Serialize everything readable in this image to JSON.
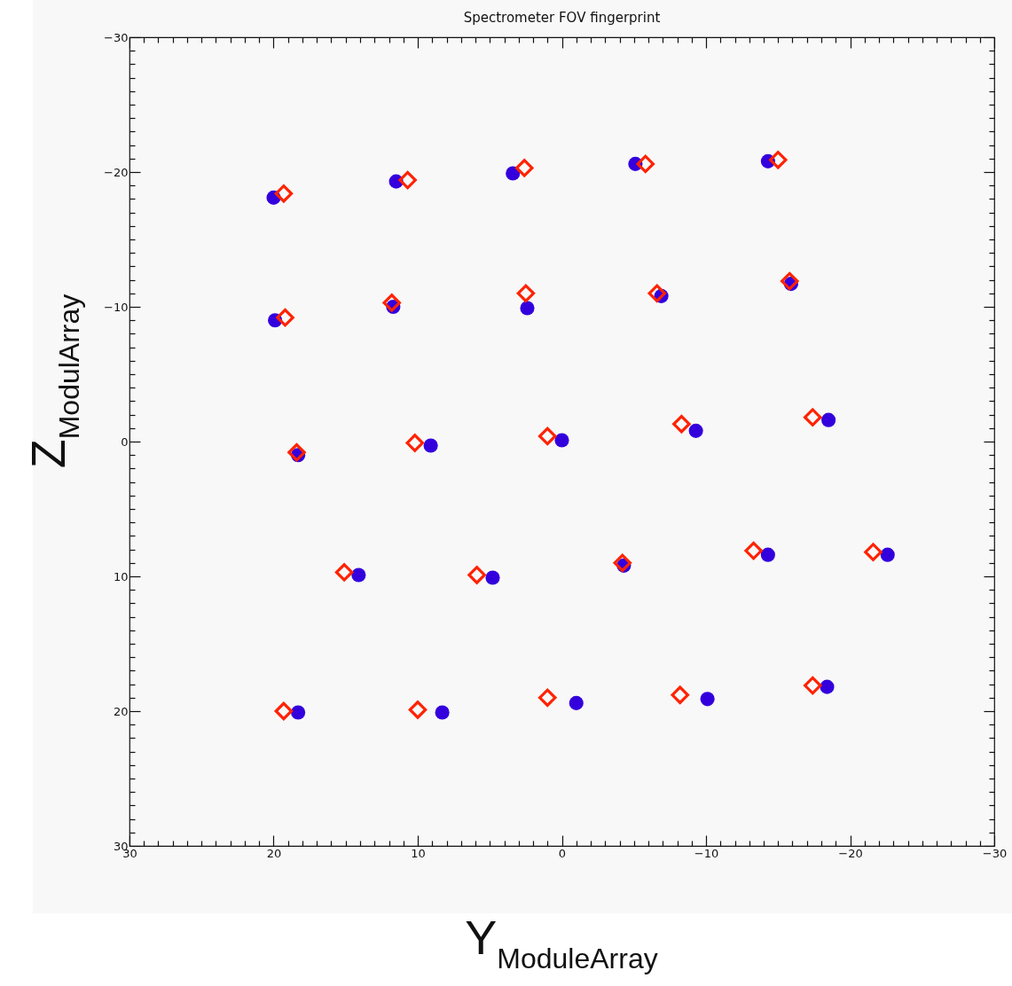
{
  "chart_data": {
    "type": "scatter",
    "title": "Spectrometer FOV fingerprint",
    "xlabel": "Y$_{ModuleArray}$",
    "ylabel": "Z$_{ModulArray}$",
    "xlim": [
      30,
      -30
    ],
    "ylim": [
      30,
      -30
    ],
    "xticks": [
      30,
      {
        "value": 29,
        "label": null
      },
      {
        "value": 28,
        "label": null
      },
      {
        "value": 27,
        "label": null
      },
      {
        "value": 26,
        "label": null
      },
      {
        "value": 25,
        "label": null
      },
      {
        "value": 24,
        "label": null
      },
      {
        "value": 23,
        "label": null
      },
      {
        "value": 22,
        "label": null
      },
      {
        "value": 21,
        "label": null
      },
      20,
      {
        "value": 19,
        "label": null
      },
      {
        "value": 18,
        "label": null
      },
      {
        "value": 17,
        "label": null
      },
      {
        "value": 16,
        "label": null
      },
      {
        "value": 15,
        "label": null
      },
      {
        "value": 14,
        "label": null
      },
      {
        "value": 13,
        "label": null
      },
      {
        "value": 12,
        "label": null
      },
      {
        "value": 11,
        "label": null
      },
      10,
      {
        "value": 9,
        "label": null
      },
      {
        "value": 8,
        "label": null
      },
      {
        "value": 7,
        "label": null
      },
      {
        "value": 6,
        "label": null
      },
      {
        "value": 5,
        "label": null
      },
      {
        "value": 4,
        "label": null
      },
      {
        "value": 3,
        "label": null
      },
      {
        "value": 2,
        "label": null
      },
      {
        "value": 1,
        "label": null
      },
      0,
      {
        "value": -1,
        "label": null
      },
      {
        "value": -2,
        "label": null
      },
      {
        "value": -3,
        "label": null
      },
      {
        "value": -4,
        "label": null
      },
      {
        "value": -5,
        "label": null
      },
      {
        "value": -6,
        "label": null
      },
      {
        "value": -7,
        "label": null
      },
      {
        "value": -8,
        "label": null
      },
      {
        "value": -9,
        "label": null
      },
      -10,
      {
        "value": -11,
        "label": null
      },
      {
        "value": -12,
        "label": null
      },
      {
        "value": -13,
        "label": null
      },
      {
        "value": -14,
        "label": null
      },
      {
        "value": -15,
        "label": null
      },
      {
        "value": -16,
        "label": null
      },
      {
        "value": -17,
        "label": null
      },
      {
        "value": -18,
        "label": null
      },
      {
        "value": -19,
        "label": null
      },
      -20,
      {
        "value": -21,
        "label": null
      },
      {
        "value": -22,
        "label": null
      },
      {
        "value": -23,
        "label": null
      },
      {
        "value": -24,
        "label": null
      },
      {
        "value": -25,
        "label": null
      },
      {
        "value": -26,
        "label": null
      },
      {
        "value": -27,
        "label": null
      },
      {
        "value": -28,
        "label": null
      },
      {
        "value": -29,
        "label": null
      },
      -30
    ],
    "yticks": [
      30,
      {
        "value": 29,
        "label": null
      },
      {
        "value": 28,
        "label": null
      },
      {
        "value": 27,
        "label": null
      },
      {
        "value": 26,
        "label": null
      },
      {
        "value": 25,
        "label": null
      },
      {
        "value": 24,
        "label": null
      },
      {
        "value": 23,
        "label": null
      },
      {
        "value": 22,
        "label": null
      },
      {
        "value": 21,
        "label": null
      },
      20,
      {
        "value": 19,
        "label": null
      },
      {
        "value": 18,
        "label": null
      },
      {
        "value": 17,
        "label": null
      },
      {
        "value": 16,
        "label": null
      },
      {
        "value": 15,
        "label": null
      },
      {
        "value": 14,
        "label": null
      },
      {
        "value": 13,
        "label": null
      },
      {
        "value": 12,
        "label": null
      },
      {
        "value": 11,
        "label": null
      },
      10,
      {
        "value": 9,
        "label": null
      },
      {
        "value": 8,
        "label": null
      },
      {
        "value": 7,
        "label": null
      },
      {
        "value": 6,
        "label": null
      },
      {
        "value": 5,
        "label": null
      },
      {
        "value": 4,
        "label": null
      },
      {
        "value": 3,
        "label": null
      },
      {
        "value": 2,
        "label": null
      },
      {
        "value": 1,
        "label": null
      },
      0,
      {
        "value": -1,
        "label": null
      },
      {
        "value": -2,
        "label": null
      },
      {
        "value": -3,
        "label": null
      },
      {
        "value": -4,
        "label": null
      },
      {
        "value": -5,
        "label": null
      },
      {
        "value": -6,
        "label": null
      },
      {
        "value": -7,
        "label": null
      },
      {
        "value": -8,
        "label": null
      },
      {
        "value": -9,
        "label": null
      },
      -10,
      {
        "value": -11,
        "label": null
      },
      {
        "value": -12,
        "label": null
      },
      {
        "value": -13,
        "label": null
      },
      {
        "value": -14,
        "label": null
      },
      {
        "value": -15,
        "label": null
      },
      {
        "value": -16,
        "label": null
      },
      {
        "value": -17,
        "label": null
      },
      {
        "value": -18,
        "label": null
      },
      {
        "value": -19,
        "label": null
      },
      -20,
      {
        "value": -21,
        "label": null
      },
      {
        "value": -22,
        "label": null
      },
      {
        "value": -23,
        "label": null
      },
      {
        "value": -24,
        "label": null
      },
      {
        "value": -25,
        "label": null
      },
      {
        "value": -26,
        "label": null
      },
      {
        "value": -27,
        "label": null
      },
      {
        "value": -28,
        "label": null
      },
      {
        "value": -29,
        "label": null
      },
      -30
    ],
    "grid": false,
    "series": [
      {
        "color": "#3300dd",
        "marker": "circle",
        "x": [
          20.0,
          11.5,
          3.4,
          -5.1,
          -14.3,
          19.9,
          11.7,
          2.4,
          -6.9,
          -15.9,
          18.3,
          9.1,
          0.0,
          -9.3,
          -18.5,
          14.1,
          4.8,
          -4.3,
          -14.3,
          -22.6,
          18.3,
          8.3,
          -1.0,
          -10.1,
          -18.4
        ],
        "values": [
          -18.1,
          -19.3,
          -19.9,
          -20.6,
          -20.8,
          -9.0,
          -10.0,
          -9.9,
          -10.8,
          -11.7,
          1.0,
          0.3,
          -0.1,
          -0.8,
          -1.6,
          9.9,
          10.1,
          9.2,
          8.4,
          8.4,
          20.1,
          20.1,
          19.4,
          19.1,
          18.2
        ]
      },
      {
        "color": "#ff2200",
        "marker": "diamond",
        "x": [
          19.3,
          10.7,
          2.6,
          -5.8,
          -15.0,
          19.2,
          11.8,
          2.5,
          -6.6,
          -15.8,
          18.4,
          10.2,
          1.0,
          -8.3,
          -17.4,
          15.1,
          5.9,
          -4.2,
          -13.3,
          -21.6,
          19.3,
          10.0,
          1.0,
          -8.2,
          -17.4
        ],
        "values": [
          -18.4,
          -19.4,
          -20.3,
          -20.6,
          -20.9,
          -9.2,
          -10.3,
          -11.0,
          -11.0,
          -11.9,
          0.8,
          0.1,
          -0.4,
          -1.3,
          -1.8,
          9.7,
          9.9,
          9.0,
          8.1,
          8.2,
          20.0,
          19.9,
          19.0,
          18.8,
          18.1
        ]
      }
    ]
  }
}
